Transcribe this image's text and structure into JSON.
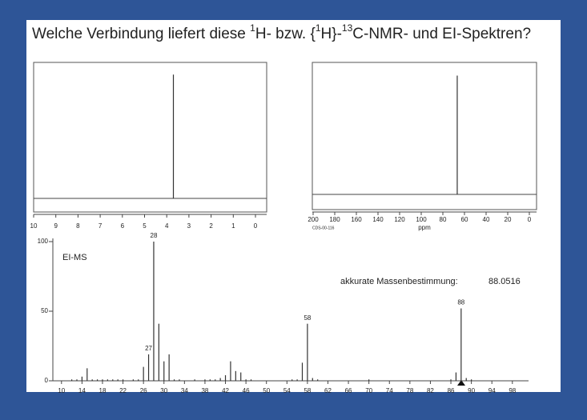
{
  "slide": {
    "title_parts": [
      "Welche Verbindung liefert diese ",
      "1",
      "H- bzw. {",
      "1",
      "H}-",
      "13",
      "C-NMR- und EI-Spektren?"
    ]
  },
  "chart_data": [
    {
      "type": "stick",
      "name": "1H-NMR",
      "x": [
        3.7
      ],
      "values": [
        91
      ],
      "xlim": [
        10,
        0
      ],
      "ylim": [
        0,
        100
      ],
      "xticks": [
        10,
        9,
        8,
        7,
        6,
        5,
        4,
        3,
        2,
        1,
        0
      ],
      "color": "#333333"
    },
    {
      "type": "stick",
      "name": "13C-NMR",
      "x": [
        66.7
      ],
      "values": [
        90
      ],
      "xlim": [
        200,
        0
      ],
      "ylim": [
        0,
        100
      ],
      "xticks": [
        200,
        180,
        160,
        140,
        120,
        100,
        80,
        60,
        40,
        20,
        0
      ],
      "x_label": "ppm",
      "code": "CDS-00-116",
      "color": "#333333"
    },
    {
      "type": "stick",
      "name": "EI-MS",
      "annotation": "EI-MS",
      "mass_label": "akkurate Massenbestimmung:",
      "mass_value": "88.0516",
      "x": [
        12,
        13,
        14,
        15,
        16,
        17,
        18,
        19,
        20,
        21,
        22,
        24,
        25,
        26,
        27,
        28,
        29,
        30,
        31,
        32,
        33,
        36,
        38,
        39,
        40,
        41,
        42,
        43,
        44,
        45,
        46,
        47,
        55,
        56,
        57,
        58,
        59,
        60,
        70,
        86,
        87,
        88,
        89,
        90
      ],
      "values": [
        1,
        1,
        3,
        9,
        1,
        1,
        1,
        1,
        1,
        1,
        1,
        1,
        1,
        10,
        19,
        100,
        41,
        14,
        19,
        1,
        1,
        1,
        1,
        1,
        1,
        2,
        4,
        14,
        7,
        6,
        1,
        1,
        1,
        1,
        13,
        41,
        2,
        1,
        1,
        1,
        6,
        52,
        2,
        1
      ],
      "labeled_peaks": [
        27,
        28,
        58,
        88
      ],
      "xlim": [
        8,
        101
      ],
      "ylim": [
        0,
        100
      ],
      "yticks": [
        0,
        50,
        100
      ],
      "xticks": [
        10,
        14,
        18,
        22,
        26,
        30,
        34,
        38,
        42,
        46,
        50,
        54,
        58,
        62,
        66,
        70,
        74,
        78,
        82,
        86,
        90,
        94,
        98
      ],
      "color": "#333333"
    }
  ]
}
